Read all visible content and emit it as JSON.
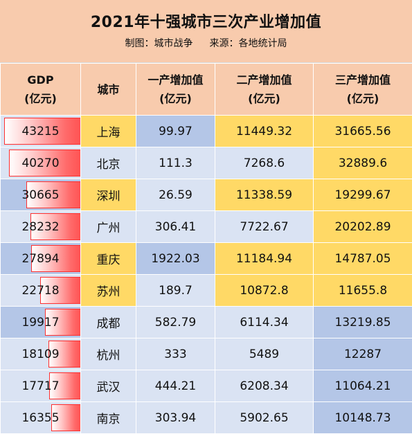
{
  "title": "2021年十强城市三次产业增加值",
  "subtitle": {
    "maker": "制图：城市战争",
    "source": "来源：各地统计局"
  },
  "headers": [
    {
      "line1": "GDP",
      "line2": "(亿元)"
    },
    {
      "line1": "城市",
      "line2": ""
    },
    {
      "line1": "一产增加值",
      "line2": "(亿元)"
    },
    {
      "line1": "二产增加值",
      "line2": "(亿元)"
    },
    {
      "line1": "三产增加值",
      "line2": "(亿元)"
    }
  ],
  "gdp_max": 43215,
  "colors": {
    "header": "#f8cbad",
    "blue": "#b4c6e7",
    "pale": "#dae3f3",
    "yellow": "#ffd966",
    "bar": "#ff5353"
  },
  "rows": [
    {
      "gdp": "43215",
      "city": "上海",
      "primary": "99.97",
      "secondary": "11449.32",
      "tertiary": "31665.56"
    },
    {
      "gdp": "40270",
      "city": "北京",
      "primary": "111.3",
      "secondary": "7268.6",
      "tertiary": "32889.6"
    },
    {
      "gdp": "30665",
      "city": "深圳",
      "primary": "26.59",
      "secondary": "11338.59",
      "tertiary": "19299.67"
    },
    {
      "gdp": "28232",
      "city": "广州",
      "primary": "306.41",
      "secondary": "7722.67",
      "tertiary": "20202.89"
    },
    {
      "gdp": "27894",
      "city": "重庆",
      "primary": "1922.03",
      "secondary": "11184.94",
      "tertiary": "14787.05"
    },
    {
      "gdp": "22718",
      "city": "苏州",
      "primary": "189.7",
      "secondary": "10872.8",
      "tertiary": "11655.8"
    },
    {
      "gdp": "19917",
      "city": "成都",
      "primary": "582.79",
      "secondary": "6114.34",
      "tertiary": "13219.85"
    },
    {
      "gdp": "18109",
      "city": "杭州",
      "primary": "333",
      "secondary": "5489",
      "tertiary": "12287"
    },
    {
      "gdp": "17717",
      "city": "武汉",
      "primary": "444.21",
      "secondary": "6208.34",
      "tertiary": "11064.21"
    },
    {
      "gdp": "16355",
      "city": "南京",
      "primary": "303.94",
      "secondary": "5902.65",
      "tertiary": "10148.73"
    }
  ]
}
